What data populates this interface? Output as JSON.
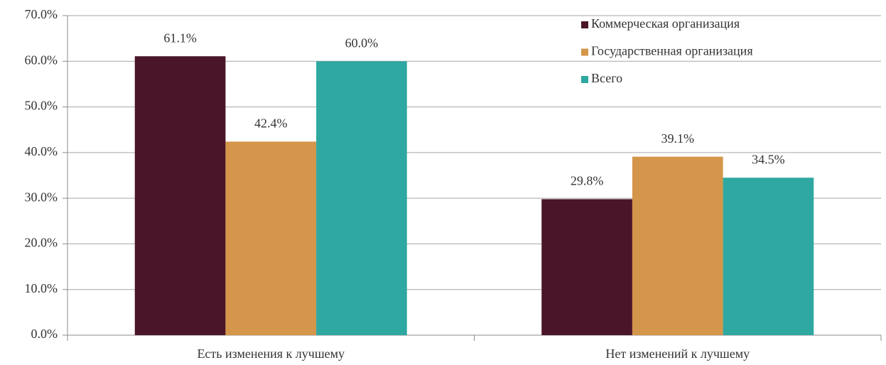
{
  "chart_data": {
    "type": "bar",
    "categories": [
      "Есть изменения к лучшему",
      "Нет изменений к лучшему"
    ],
    "series": [
      {
        "name": "Коммерческая организация",
        "color": "#4a1528",
        "values": [
          61.1,
          29.8
        ],
        "value_labels": [
          "61.1%",
          "29.8%"
        ]
      },
      {
        "name": "Государственная организация",
        "color": "#d4964a",
        "values": [
          42.4,
          39.1
        ],
        "value_labels": [
          "42.4%",
          "39.1%"
        ]
      },
      {
        "name": "Всего",
        "color": "#2ea8a0",
        "values": [
          60.0,
          34.5
        ],
        "value_labels": [
          "60.0%",
          "34.5%"
        ]
      }
    ],
    "ylim": [
      0,
      70
    ],
    "yticks": [
      {
        "value": 0,
        "label": "0.0%"
      },
      {
        "value": 10,
        "label": "10.0%"
      },
      {
        "value": 20,
        "label": "20.0%"
      },
      {
        "value": 30,
        "label": "30.0%"
      },
      {
        "value": 40,
        "label": "40.0%"
      },
      {
        "value": 50,
        "label": "50.0%"
      },
      {
        "value": 60,
        "label": "60.0%"
      },
      {
        "value": 70,
        "label": "70.0%"
      }
    ],
    "grid": true,
    "legend": "upper right"
  }
}
